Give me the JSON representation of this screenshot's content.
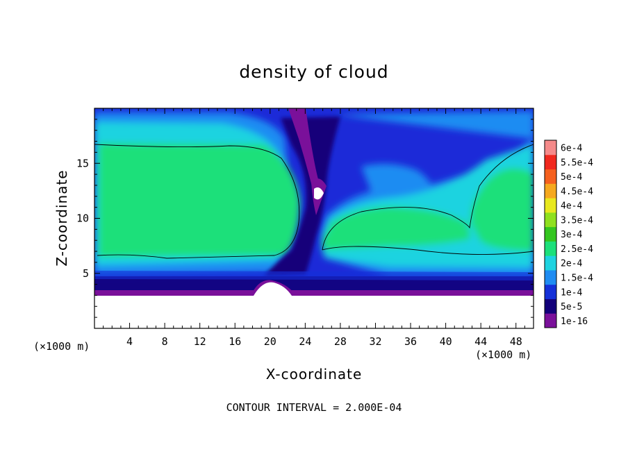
{
  "chart_data": {
    "type": "heatmap",
    "title": "density of cloud",
    "xlabel": "X-coordinate",
    "ylabel": "Z-coordinate",
    "x_unit": "(×1000 m)",
    "x_unit_right": "(×1000 m)",
    "xlim": [
      0,
      50
    ],
    "ylim": [
      0,
      20
    ],
    "x_ticks": [
      4,
      8,
      12,
      16,
      20,
      24,
      28,
      32,
      36,
      40,
      44,
      48
    ],
    "y_ticks": [
      5,
      10,
      15
    ],
    "footer": "CONTOUR INTERVAL = 2.000E-04",
    "colorbar": {
      "levels": [
        {
          "label": "1e-16",
          "color": "#7a109a"
        },
        {
          "label": "5e-5",
          "color": "#12007a"
        },
        {
          "label": "1e-4",
          "color": "#1430d8"
        },
        {
          "label": "1.5e-4",
          "color": "#1f8cf2"
        },
        {
          "label": "2e-4",
          "color": "#1ed3e0"
        },
        {
          "label": "2.5e-4",
          "color": "#1ce07a"
        },
        {
          "label": "3e-4",
          "color": "#33c61f"
        },
        {
          "label": "3.5e-4",
          "color": "#8fe01e"
        },
        {
          "label": "4e-4",
          "color": "#e8e81e"
        },
        {
          "label": "4.5e-4",
          "color": "#f5a81e"
        },
        {
          "label": "5e-4",
          "color": "#f5601e"
        },
        {
          "label": "5.5e-4",
          "color": "#f0281e"
        },
        {
          "label": "6e-4",
          "color": "#f58a8a"
        }
      ]
    }
  }
}
